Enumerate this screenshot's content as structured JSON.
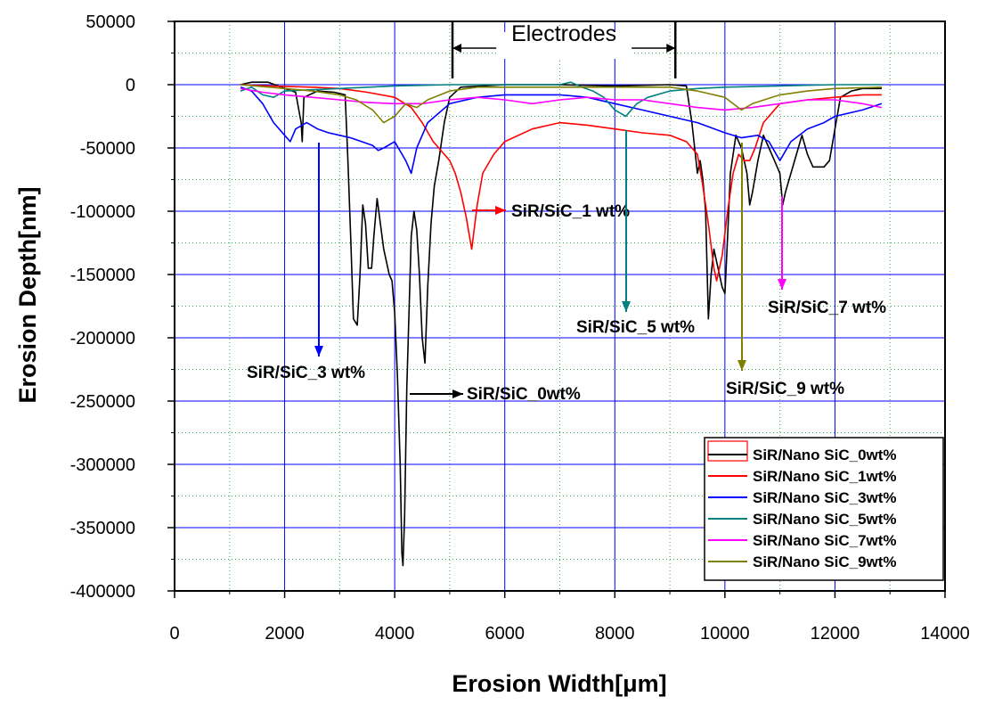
{
  "chart_data": {
    "type": "line",
    "xlabel": "Erosion Width[μm]",
    "ylabel": "Erosion Depth[nm]",
    "xlim": [
      0,
      14000
    ],
    "ylim": [
      -400000,
      50000
    ],
    "xticks": [
      "0",
      "2000",
      "4000",
      "6000",
      "8000",
      "10000",
      "12000",
      "14000"
    ],
    "yticks": [
      "50000",
      "0",
      "-50000",
      "-100000",
      "-150000",
      "-200000",
      "-250000",
      "-300000",
      "-350000",
      "-400000"
    ],
    "grid": true,
    "legend_position": "bottom-right",
    "electrodes": {
      "label": "Electrodes",
      "x_start": 5050,
      "x_end": 9100
    },
    "series": [
      {
        "name": "SiR/Nano SiC_0wt%",
        "color": "#000000",
        "points": [
          [
            1200,
            0
          ],
          [
            1400,
            2000
          ],
          [
            1700,
            2000
          ],
          [
            2000,
            -3000
          ],
          [
            2200,
            -6000
          ],
          [
            2300,
            -30000
          ],
          [
            2320,
            -45000
          ],
          [
            2350,
            -10000
          ],
          [
            2600,
            -5000
          ],
          [
            2900,
            -6000
          ],
          [
            3100,
            -8000
          ],
          [
            3150,
            -60000
          ],
          [
            3200,
            -120000
          ],
          [
            3250,
            -185000
          ],
          [
            3320,
            -190000
          ],
          [
            3370,
            -150000
          ],
          [
            3420,
            -95000
          ],
          [
            3470,
            -110000
          ],
          [
            3520,
            -145000
          ],
          [
            3580,
            -145000
          ],
          [
            3620,
            -120000
          ],
          [
            3680,
            -90000
          ],
          [
            3740,
            -110000
          ],
          [
            3800,
            -130000
          ],
          [
            3850,
            -140000
          ],
          [
            3900,
            -150000
          ],
          [
            3950,
            -155000
          ],
          [
            4000,
            -180000
          ],
          [
            4050,
            -230000
          ],
          [
            4100,
            -300000
          ],
          [
            4130,
            -370000
          ],
          [
            4150,
            -380000
          ],
          [
            4180,
            -340000
          ],
          [
            4220,
            -240000
          ],
          [
            4260,
            -180000
          ],
          [
            4300,
            -120000
          ],
          [
            4350,
            -100000
          ],
          [
            4400,
            -115000
          ],
          [
            4450,
            -150000
          ],
          [
            4500,
            -200000
          ],
          [
            4550,
            -220000
          ],
          [
            4600,
            -160000
          ],
          [
            4660,
            -110000
          ],
          [
            4720,
            -80000
          ],
          [
            4800,
            -60000
          ],
          [
            4900,
            -30000
          ],
          [
            5000,
            -10000
          ],
          [
            5200,
            -2000
          ],
          [
            6000,
            0
          ],
          [
            7000,
            0
          ],
          [
            8000,
            -1000
          ],
          [
            9000,
            0
          ],
          [
            9300,
            -1000
          ],
          [
            9400,
            -30000
          ],
          [
            9500,
            -70000
          ],
          [
            9550,
            -60000
          ],
          [
            9600,
            -75000
          ],
          [
            9650,
            -100000
          ],
          [
            9700,
            -185000
          ],
          [
            9750,
            -150000
          ],
          [
            9800,
            -130000
          ],
          [
            9850,
            -140000
          ],
          [
            9900,
            -150000
          ],
          [
            9950,
            -160000
          ],
          [
            10000,
            -165000
          ],
          [
            10050,
            -120000
          ],
          [
            10100,
            -70000
          ],
          [
            10200,
            -40000
          ],
          [
            10300,
            -50000
          ],
          [
            10400,
            -70000
          ],
          [
            10450,
            -95000
          ],
          [
            10500,
            -85000
          ],
          [
            10600,
            -60000
          ],
          [
            10700,
            -40000
          ],
          [
            10800,
            -50000
          ],
          [
            10900,
            -60000
          ],
          [
            11000,
            -70000
          ],
          [
            11050,
            -95000
          ],
          [
            11100,
            -85000
          ],
          [
            11200,
            -70000
          ],
          [
            11300,
            -55000
          ],
          [
            11400,
            -40000
          ],
          [
            11500,
            -55000
          ],
          [
            11600,
            -65000
          ],
          [
            11700,
            -65000
          ],
          [
            11800,
            -65000
          ],
          [
            11900,
            -60000
          ],
          [
            12000,
            -35000
          ],
          [
            12100,
            -10000
          ],
          [
            12300,
            -5000
          ],
          [
            12500,
            -3000
          ],
          [
            12850,
            -3000
          ]
        ]
      },
      {
        "name": "SiR/Nano SiC_1wt%",
        "color": "#ff0000",
        "points": [
          [
            1200,
            0
          ],
          [
            1700,
            -1000
          ],
          [
            2500,
            -2000
          ],
          [
            3000,
            -3000
          ],
          [
            3500,
            -6000
          ],
          [
            4000,
            -10000
          ],
          [
            4300,
            -18000
          ],
          [
            4500,
            -30000
          ],
          [
            4700,
            -45000
          ],
          [
            4900,
            -55000
          ],
          [
            5000,
            -60000
          ],
          [
            5100,
            -70000
          ],
          [
            5200,
            -85000
          ],
          [
            5300,
            -105000
          ],
          [
            5400,
            -130000
          ],
          [
            5500,
            -95000
          ],
          [
            5600,
            -70000
          ],
          [
            5800,
            -55000
          ],
          [
            6000,
            -45000
          ],
          [
            6500,
            -35000
          ],
          [
            7000,
            -30000
          ],
          [
            7500,
            -32000
          ],
          [
            8000,
            -35000
          ],
          [
            8500,
            -38000
          ],
          [
            9000,
            -40000
          ],
          [
            9300,
            -45000
          ],
          [
            9500,
            -55000
          ],
          [
            9600,
            -80000
          ],
          [
            9700,
            -110000
          ],
          [
            9800,
            -145000
          ],
          [
            9850,
            -155000
          ],
          [
            9950,
            -135000
          ],
          [
            10050,
            -100000
          ],
          [
            10150,
            -70000
          ],
          [
            10250,
            -55000
          ],
          [
            10350,
            -60000
          ],
          [
            10450,
            -60000
          ],
          [
            10550,
            -50000
          ],
          [
            10700,
            -30000
          ],
          [
            11000,
            -15000
          ],
          [
            11500,
            -12000
          ],
          [
            12000,
            -10000
          ],
          [
            12500,
            -8000
          ],
          [
            12850,
            -8000
          ]
        ]
      },
      {
        "name": "SiR/Nano SiC_3wt%",
        "color": "#0000ff",
        "points": [
          [
            1200,
            -2000
          ],
          [
            1400,
            -5000
          ],
          [
            1600,
            -15000
          ],
          [
            1800,
            -30000
          ],
          [
            2000,
            -40000
          ],
          [
            2100,
            -45000
          ],
          [
            2200,
            -35000
          ],
          [
            2400,
            -30000
          ],
          [
            2600,
            -35000
          ],
          [
            2800,
            -38000
          ],
          [
            3000,
            -40000
          ],
          [
            3200,
            -42000
          ],
          [
            3400,
            -45000
          ],
          [
            3600,
            -48000
          ],
          [
            3700,
            -52000
          ],
          [
            3800,
            -50000
          ],
          [
            4000,
            -45000
          ],
          [
            4200,
            -60000
          ],
          [
            4300,
            -70000
          ],
          [
            4400,
            -50000
          ],
          [
            4600,
            -30000
          ],
          [
            5000,
            -15000
          ],
          [
            5500,
            -10000
          ],
          [
            6000,
            -8000
          ],
          [
            6500,
            -8000
          ],
          [
            7000,
            -8000
          ],
          [
            7500,
            -10000
          ],
          [
            8000,
            -15000
          ],
          [
            8500,
            -20000
          ],
          [
            9000,
            -25000
          ],
          [
            9500,
            -30000
          ],
          [
            10000,
            -38000
          ],
          [
            10300,
            -42000
          ],
          [
            10600,
            -40000
          ],
          [
            10800,
            -45000
          ],
          [
            11000,
            -60000
          ],
          [
            11200,
            -45000
          ],
          [
            11500,
            -35000
          ],
          [
            11800,
            -30000
          ],
          [
            12000,
            -25000
          ],
          [
            12500,
            -20000
          ],
          [
            12850,
            -15000
          ]
        ]
      },
      {
        "name": "SiR/Nano SiC_5wt%",
        "color": "#008080",
        "points": [
          [
            1200,
            -5000
          ],
          [
            1400,
            -2000
          ],
          [
            1600,
            -8000
          ],
          [
            1800,
            -10000
          ],
          [
            2000,
            -5000
          ],
          [
            3000,
            -3000
          ],
          [
            4000,
            -1000
          ],
          [
            5000,
            0
          ],
          [
            6000,
            0
          ],
          [
            7000,
            0
          ],
          [
            7200,
            2000
          ],
          [
            7400,
            -2000
          ],
          [
            7600,
            -5000
          ],
          [
            7800,
            -10000
          ],
          [
            8000,
            -20000
          ],
          [
            8200,
            -25000
          ],
          [
            8400,
            -15000
          ],
          [
            8600,
            -10000
          ],
          [
            9000,
            -5000
          ],
          [
            9500,
            -3000
          ],
          [
            10000,
            -2000
          ],
          [
            11000,
            -1000
          ],
          [
            12000,
            0
          ],
          [
            12850,
            0
          ]
        ]
      },
      {
        "name": "SiR/Nano SiC_7wt%",
        "color": "#ff00ff",
        "points": [
          [
            1200,
            -3000
          ],
          [
            1600,
            -6000
          ],
          [
            2000,
            -8000
          ],
          [
            2500,
            -10000
          ],
          [
            3000,
            -12000
          ],
          [
            3500,
            -14000
          ],
          [
            4000,
            -15000
          ],
          [
            4500,
            -15000
          ],
          [
            5000,
            -12000
          ],
          [
            5500,
            -10000
          ],
          [
            6000,
            -12000
          ],
          [
            6500,
            -15000
          ],
          [
            7000,
            -12000
          ],
          [
            7500,
            -10000
          ],
          [
            8000,
            -12000
          ],
          [
            8500,
            -12000
          ],
          [
            9000,
            -15000
          ],
          [
            9500,
            -18000
          ],
          [
            10000,
            -20000
          ],
          [
            10500,
            -18000
          ],
          [
            11000,
            -15000
          ],
          [
            11500,
            -12000
          ],
          [
            12000,
            -12000
          ],
          [
            12500,
            -15000
          ],
          [
            12850,
            -18000
          ]
        ]
      },
      {
        "name": "SiR/Nano SiC_9wt%",
        "color": "#808000",
        "points": [
          [
            1200,
            0
          ],
          [
            2000,
            -3000
          ],
          [
            2500,
            -5000
          ],
          [
            3000,
            -8000
          ],
          [
            3300,
            -12000
          ],
          [
            3600,
            -20000
          ],
          [
            3800,
            -30000
          ],
          [
            4000,
            -25000
          ],
          [
            4200,
            -15000
          ],
          [
            4400,
            -18000
          ],
          [
            4600,
            -12000
          ],
          [
            5000,
            -5000
          ],
          [
            5500,
            -2000
          ],
          [
            6000,
            -2000
          ],
          [
            7000,
            -2000
          ],
          [
            8000,
            -2000
          ],
          [
            9000,
            -2000
          ],
          [
            9500,
            -5000
          ],
          [
            10000,
            -10000
          ],
          [
            10300,
            -20000
          ],
          [
            10500,
            -15000
          ],
          [
            11000,
            -8000
          ],
          [
            11500,
            -5000
          ],
          [
            12000,
            -3000
          ],
          [
            12850,
            -2000
          ]
        ]
      }
    ],
    "annotations": [
      {
        "text": "SiR/SiC_1 wt%",
        "series_color": "#ff0000",
        "arrow": "horizontal"
      },
      {
        "text": "SiR/SiC_5 wt%",
        "series_color": "#008080",
        "arrow": "vertical"
      },
      {
        "text": "SiR/SiC_7 wt%",
        "series_color": "#ff00ff",
        "arrow": "vertical"
      },
      {
        "text": "SiR/SiC_3 wt%",
        "series_color": "#0000ff",
        "arrow": "vertical"
      },
      {
        "text": "SiR/SiC_0wt%",
        "series_color": "#000000",
        "arrow": "horizontal"
      },
      {
        "text": "SiR/SiC_9 wt%",
        "series_color": "#808000",
        "arrow": "vertical"
      }
    ]
  }
}
